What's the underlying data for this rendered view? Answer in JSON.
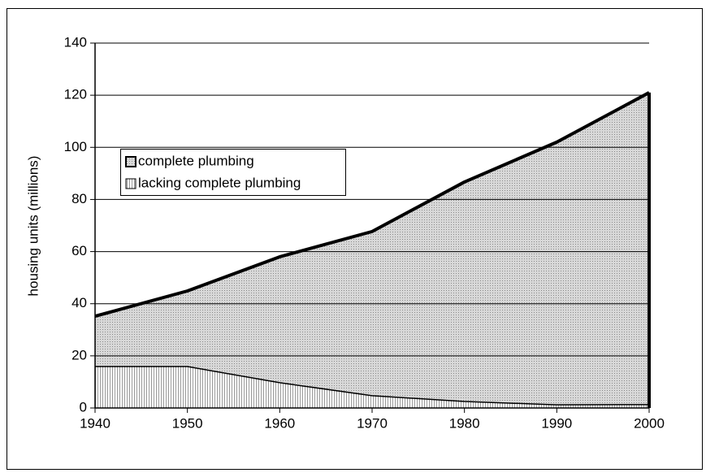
{
  "chart_data": {
    "type": "stacked_area",
    "y_label": "housing units (millions)",
    "x": [
      1940,
      1950,
      1960,
      1970,
      1980,
      1990,
      2000
    ],
    "series": [
      {
        "name": "lacking complete plumbing",
        "color": "#b0b0b0",
        "values": [
          15.9,
          15.9,
          9.7,
          4.7,
          2.5,
          1.2,
          1.3
        ]
      },
      {
        "name": "complete plumbing",
        "color": "#c8c8c8",
        "values": [
          19.3,
          29.0,
          48.3,
          63.0,
          84.2,
          100.8,
          119.7
        ]
      }
    ],
    "xlim": [
      1940,
      2000
    ],
    "xticks": [
      1940,
      1950,
      1960,
      1970,
      1980,
      1990,
      2000
    ],
    "ylim": [
      0,
      140
    ],
    "yticks": [
      0,
      20,
      40,
      60,
      80,
      100,
      120,
      140
    ],
    "grid": true,
    "legend": "upper left"
  }
}
